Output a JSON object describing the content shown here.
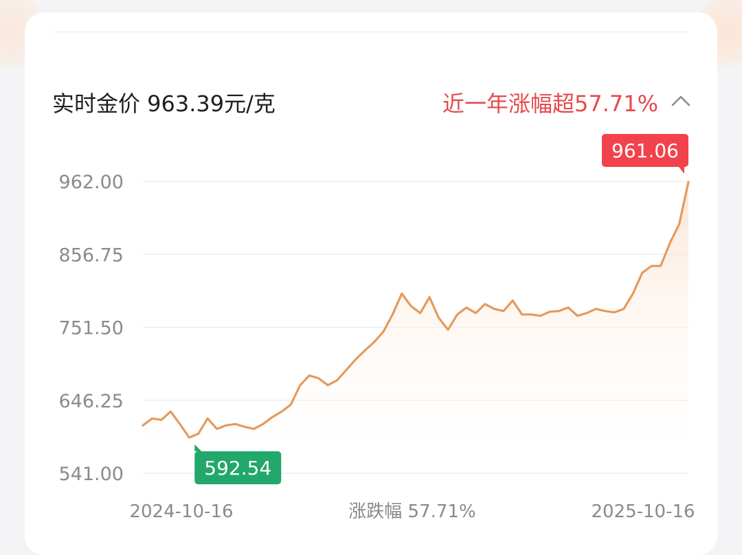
{
  "header": {
    "price_text": "实时金价 963.39元/克",
    "change_text": "近一年涨幅超57.71%",
    "chevron_icon": "chevron-up-icon"
  },
  "colors": {
    "line": "#e59a5c",
    "fill_top": "#fbe3cf",
    "max_badge": "#f2424b",
    "min_badge": "#21a86a",
    "up_text": "#e54a4a",
    "axis_text": "#8a8a8a"
  },
  "chart_data": {
    "type": "area",
    "title": "",
    "xlabel": "",
    "ylabel": "",
    "ylim": [
      541.0,
      962.0
    ],
    "yticks": [
      "962.00",
      "856.75",
      "751.50",
      "646.25",
      "541.00"
    ],
    "x_start_label": "2024-10-16",
    "x_end_label": "2025-10-16",
    "center_label": "涨跌幅 57.71%",
    "max_label": "961.06",
    "min_label": "592.54",
    "max_index": 59,
    "min_index": 5,
    "series": [
      {
        "values": [
          610,
          620,
          618,
          630,
          612,
          592.54,
          598,
          620,
          605,
          610,
          612,
          608,
          605,
          612,
          622,
          630,
          640,
          668,
          682,
          678,
          668,
          675,
          690,
          705,
          718,
          730,
          745,
          770,
          800,
          782,
          772,
          795,
          765,
          748,
          770,
          780,
          772,
          785,
          778,
          775,
          790,
          770,
          770,
          768,
          774,
          775,
          780,
          768,
          772,
          778,
          775,
          773,
          778,
          800,
          830,
          840,
          840,
          873,
          900,
          961.06
        ]
      }
    ]
  }
}
